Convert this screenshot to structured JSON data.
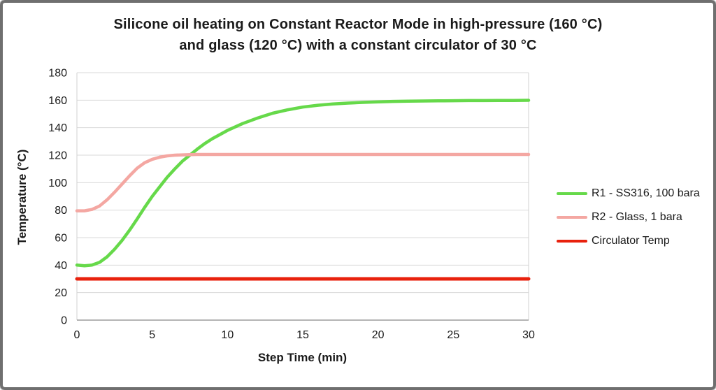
{
  "title": {
    "line1": "Silicone oil heating on Constant Reactor Mode in high-pressure (160 °C)",
    "line2": "and glass (120 °C) with a constant circulator of 30 °C"
  },
  "chart_data": {
    "type": "line",
    "title": "Silicone oil heating on Constant Reactor Mode in high-pressure (160 °C) and glass (120 °C) with a constant circulator of 30 °C",
    "xlabel": "Step Time (min)",
    "ylabel": "Temperature (°C)",
    "xlim": [
      0,
      30
    ],
    "ylim": [
      0,
      180
    ],
    "x_ticks": [
      0,
      5,
      10,
      15,
      20,
      25,
      30
    ],
    "y_ticks": [
      0,
      20,
      40,
      60,
      80,
      100,
      120,
      140,
      160,
      180
    ],
    "grid": "horizontal",
    "legend_position": "right",
    "x": [
      0,
      0.5,
      1,
      1.5,
      2,
      2.5,
      3,
      3.5,
      4,
      4.5,
      5,
      5.5,
      6,
      6.5,
      7,
      7.5,
      8,
      8.5,
      9,
      9.5,
      10,
      11,
      12,
      13,
      14,
      15,
      16,
      17,
      18,
      19,
      20,
      21,
      22,
      23,
      24,
      25,
      26,
      27,
      28,
      29,
      30
    ],
    "series": [
      {
        "name": "R1 - SS316, 100 bara",
        "color": "#66d94a",
        "stroke_width": 4.5,
        "values": [
          40,
          39.5,
          40,
          42,
          46,
          51.5,
          58,
          65.5,
          73.5,
          82,
          90,
          97,
          104,
          110,
          115.5,
          120,
          124.5,
          128.5,
          132,
          135,
          138,
          143,
          147,
          150.5,
          153,
          155,
          156.3,
          157.2,
          157.9,
          158.4,
          158.8,
          159.1,
          159.3,
          159.4,
          159.5,
          159.6,
          159.7,
          159.7,
          159.8,
          159.8,
          159.9
        ]
      },
      {
        "name": "R2 - Glass, 1 bara",
        "color": "#f4a7a2",
        "stroke_width": 4.5,
        "values": [
          79.5,
          79.5,
          80.5,
          83,
          87.5,
          93,
          99,
          105,
          110.5,
          114.5,
          117,
          118.5,
          119.5,
          120,
          120.2,
          120.4,
          120.5,
          120.5,
          120.5,
          120.5,
          120.5,
          120.5,
          120.5,
          120.5,
          120.5,
          120.5,
          120.5,
          120.5,
          120.5,
          120.5,
          120.5,
          120.5,
          120.5,
          120.5,
          120.5,
          120.5,
          120.5,
          120.5,
          120.5,
          120.5,
          120.5
        ]
      },
      {
        "name": "Circulator Temp",
        "color": "#e8210d",
        "stroke_width": 5,
        "values": [
          30,
          30,
          30,
          30,
          30,
          30,
          30,
          30,
          30,
          30,
          30,
          30,
          30,
          30,
          30,
          30,
          30,
          30,
          30,
          30,
          30,
          30,
          30,
          30,
          30,
          30,
          30,
          30,
          30,
          30,
          30,
          30,
          30,
          30,
          30,
          30,
          30,
          30,
          30,
          30,
          30
        ]
      }
    ],
    "colors": {
      "gridline": "#dadada",
      "plot_border": "#d2d2d2",
      "x_axis_line": "#9b9b9b",
      "text": "#1a1a1a"
    }
  }
}
